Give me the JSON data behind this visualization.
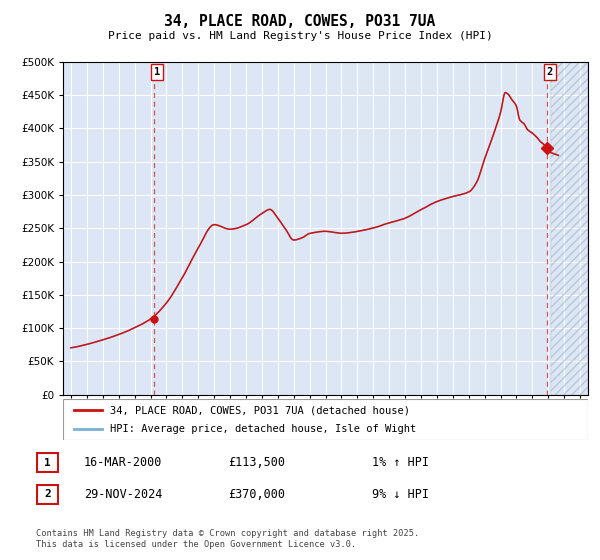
{
  "title": "34, PLACE ROAD, COWES, PO31 7UA",
  "subtitle": "Price paid vs. HM Land Registry's House Price Index (HPI)",
  "ylim": [
    0,
    500000
  ],
  "yticks": [
    0,
    50000,
    100000,
    150000,
    200000,
    250000,
    300000,
    350000,
    400000,
    450000,
    500000
  ],
  "ytick_labels": [
    "£0",
    "£50K",
    "£100K",
    "£150K",
    "£200K",
    "£250K",
    "£300K",
    "£350K",
    "£400K",
    "£450K",
    "£500K"
  ],
  "hpi_color": "#7bafd4",
  "price_color": "#cc1111",
  "dashed_color": "#cc1111",
  "bg_color": "#dce6f5",
  "grid_color": "#ffffff",
  "marker1_x": 2000.21,
  "marker1_y": 113500,
  "marker2_x": 2024.91,
  "marker2_y": 370000,
  "legend_line1": "34, PLACE ROAD, COWES, PO31 7UA (detached house)",
  "legend_line2": "HPI: Average price, detached house, Isle of Wight",
  "annotation1_date": "16-MAR-2000",
  "annotation1_price": "£113,500",
  "annotation1_hpi": "1% ↑ HPI",
  "annotation2_date": "29-NOV-2024",
  "annotation2_price": "£370,000",
  "annotation2_hpi": "9% ↓ HPI",
  "footer": "Contains HM Land Registry data © Crown copyright and database right 2025.\nThis data is licensed under the Open Government Licence v3.0.",
  "xlim_start": 1994.5,
  "xlim_end": 2027.5,
  "future_start": 2025.17
}
